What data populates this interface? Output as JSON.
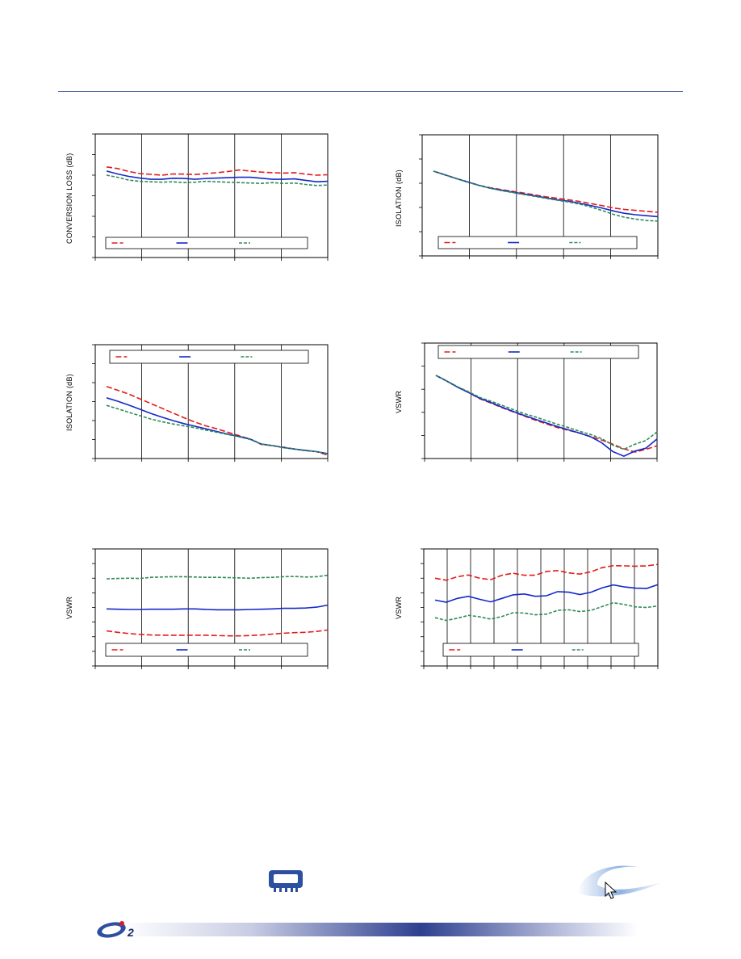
{
  "colors": {
    "red": "#e31b1b",
    "blue": "#1428c8",
    "green": "#2e8b57",
    "rule": "#3a4f99"
  },
  "icons": {
    "logo": "company-logo",
    "chip": "chip-package-icon",
    "swoosh": "swoosh-cursor-graphic"
  },
  "charts": [
    {
      "id": "conv-loss",
      "ylabel": "CONVERSION LOSS (dB)",
      "chart_data": {
        "type": "line",
        "x": [
          0,
          1,
          2,
          3,
          4,
          5,
          6,
          7,
          8,
          9,
          10,
          11,
          12,
          13,
          14,
          15,
          16,
          17,
          18,
          19,
          20
        ],
        "xlim": [
          0,
          20
        ],
        "ylim": [
          0,
          6
        ],
        "xdiv": 5,
        "ydiv": 6,
        "series": [
          {
            "color": "red",
            "dash": "7,3",
            "values": [
              4.4,
              4.32,
              4.18,
              4.08,
              4.04,
              4.0,
              4.06,
              4.05,
              4.03,
              4.08,
              4.12,
              4.18,
              4.25,
              4.2,
              4.15,
              4.12,
              4.1,
              4.12,
              4.05,
              4.0,
              4.02
            ]
          },
          {
            "color": "blue",
            "dash": "",
            "values": [
              4.2,
              4.06,
              3.94,
              3.86,
              3.8,
              3.8,
              3.85,
              3.84,
              3.8,
              3.84,
              3.86,
              3.88,
              3.9,
              3.9,
              3.85,
              3.8,
              3.8,
              3.82,
              3.75,
              3.68,
              3.7
            ]
          },
          {
            "color": "green",
            "dash": "4,2",
            "values": [
              4.0,
              3.9,
              3.76,
              3.7,
              3.68,
              3.66,
              3.68,
              3.64,
              3.66,
              3.7,
              3.68,
              3.66,
              3.64,
              3.62,
              3.6,
              3.64,
              3.6,
              3.62,
              3.55,
              3.5,
              3.52
            ]
          }
        ]
      }
    },
    {
      "id": "isolation-1",
      "ylabel": "ISOLATION (dB)",
      "chart_data": {
        "type": "line",
        "x": [
          0,
          1,
          2,
          3,
          4,
          5,
          6,
          7,
          8,
          9,
          10,
          11,
          12,
          13,
          14,
          15,
          16,
          17,
          18,
          19,
          20
        ],
        "xlim": [
          0,
          20
        ],
        "ylim": [
          0,
          5
        ],
        "xdiv": 5,
        "ydiv": 5,
        "series": [
          {
            "color": "red",
            "dash": "7,3",
            "values": [
              3.5,
              3.35,
              3.2,
              3.06,
              2.92,
              2.82,
              2.74,
              2.67,
              2.6,
              2.52,
              2.44,
              2.38,
              2.32,
              2.25,
              2.16,
              2.08,
              1.98,
              1.92,
              1.88,
              1.84,
              1.8
            ]
          },
          {
            "color": "blue",
            "dash": "",
            "values": [
              3.5,
              3.35,
              3.2,
              3.06,
              2.92,
              2.8,
              2.72,
              2.64,
              2.56,
              2.48,
              2.4,
              2.32,
              2.26,
              2.18,
              2.08,
              1.98,
              1.86,
              1.76,
              1.7,
              1.66,
              1.62
            ]
          },
          {
            "color": "green",
            "dash": "4,2",
            "values": [
              3.5,
              3.36,
              3.2,
              3.05,
              2.92,
              2.8,
              2.7,
              2.62,
              2.54,
              2.46,
              2.38,
              2.3,
              2.23,
              2.14,
              2.02,
              1.88,
              1.72,
              1.6,
              1.52,
              1.46,
              1.44
            ]
          }
        ]
      }
    },
    {
      "id": "isolation-2",
      "ylabel": "ISOLATION (dB)",
      "chart_data": {
        "type": "line",
        "x": [
          0,
          1,
          2,
          3,
          4,
          5,
          6,
          7,
          8,
          9,
          10,
          11,
          12,
          13,
          14,
          15,
          16,
          17,
          18,
          19,
          20
        ],
        "xlim": [
          0,
          20
        ],
        "ylim": [
          0,
          6
        ],
        "xdiv": 5,
        "ydiv": 6,
        "series": [
          {
            "color": "red",
            "dash": "7,3",
            "values": [
              3.8,
              3.6,
              3.4,
              3.15,
              2.9,
              2.65,
              2.4,
              2.15,
              1.92,
              1.72,
              1.56,
              1.38,
              1.2,
              1.02,
              0.74,
              0.68,
              0.6,
              0.5,
              0.42,
              0.36,
              0.18
            ]
          },
          {
            "color": "blue",
            "dash": "",
            "values": [
              3.2,
              3.02,
              2.82,
              2.6,
              2.38,
              2.18,
              2.0,
              1.84,
              1.7,
              1.56,
              1.42,
              1.28,
              1.16,
              1.02,
              0.76,
              0.68,
              0.58,
              0.5,
              0.42,
              0.36,
              0.26
            ]
          },
          {
            "color": "green",
            "dash": "4,2",
            "values": [
              2.8,
              2.62,
              2.44,
              2.26,
              2.08,
              1.94,
              1.82,
              1.72,
              1.62,
              1.5,
              1.38,
              1.26,
              1.14,
              1.0,
              0.76,
              0.68,
              0.58,
              0.5,
              0.44,
              0.36,
              0.24
            ]
          }
        ]
      }
    },
    {
      "id": "vswr-1",
      "ylabel": "VSWR",
      "chart_data": {
        "type": "line",
        "x": [
          0,
          1,
          2,
          3,
          4,
          5,
          6,
          7,
          8,
          9,
          10,
          11,
          12,
          13,
          14,
          15,
          16,
          17,
          18,
          19,
          20
        ],
        "xlim": [
          0,
          20
        ],
        "ylim": [
          0,
          5
        ],
        "xdiv": 5,
        "ydiv": 5,
        "series": [
          {
            "color": "red",
            "dash": "7,3",
            "values": [
              3.6,
              3.35,
              3.08,
              2.85,
              2.58,
              2.4,
              2.2,
              2.02,
              1.84,
              1.66,
              1.5,
              1.34,
              1.22,
              1.1,
              0.95,
              0.8,
              0.62,
              0.42,
              0.28,
              0.4,
              0.55
            ]
          },
          {
            "color": "blue",
            "dash": "",
            "values": [
              3.6,
              3.35,
              3.08,
              2.85,
              2.6,
              2.42,
              2.22,
              2.04,
              1.86,
              1.7,
              1.54,
              1.38,
              1.24,
              1.1,
              0.94,
              0.68,
              0.3,
              0.1,
              0.32,
              0.45,
              0.85
            ]
          },
          {
            "color": "green",
            "dash": "4,2",
            "values": [
              3.6,
              3.36,
              3.1,
              2.88,
              2.64,
              2.48,
              2.3,
              2.12,
              1.94,
              1.8,
              1.64,
              1.48,
              1.34,
              1.18,
              1.04,
              0.86,
              0.58,
              0.4,
              0.62,
              0.78,
              1.15
            ]
          }
        ]
      }
    },
    {
      "id": "vswr-2",
      "ylabel": "VSWR",
      "chart_data": {
        "type": "line",
        "x": [
          0,
          1,
          2,
          3,
          4,
          5,
          6,
          7,
          8,
          9,
          10,
          11,
          12,
          13,
          14,
          15,
          16,
          17,
          18,
          19,
          20
        ],
        "xlim": [
          0,
          20
        ],
        "ylim": [
          0,
          8
        ],
        "xdiv": 5,
        "ydiv": 8,
        "series": [
          {
            "color": "red",
            "dash": "7,3",
            "values": [
              2.4,
              2.3,
              2.22,
              2.16,
              2.12,
              2.1,
              2.1,
              2.1,
              2.1,
              2.1,
              2.08,
              2.06,
              2.06,
              2.08,
              2.12,
              2.18,
              2.24,
              2.28,
              2.3,
              2.36,
              2.46
            ]
          },
          {
            "color": "blue",
            "dash": "",
            "values": [
              3.9,
              3.88,
              3.86,
              3.86,
              3.88,
              3.88,
              3.88,
              3.9,
              3.9,
              3.86,
              3.84,
              3.84,
              3.84,
              3.86,
              3.88,
              3.9,
              3.94,
              3.94,
              3.96,
              4.02,
              4.16
            ]
          },
          {
            "color": "green",
            "dash": "4,2",
            "values": [
              5.96,
              5.98,
              6.0,
              5.98,
              6.06,
              6.08,
              6.1,
              6.1,
              6.08,
              6.06,
              6.06,
              6.04,
              6.02,
              6.0,
              6.04,
              6.06,
              6.1,
              6.12,
              6.08,
              6.1,
              6.2
            ]
          }
        ]
      }
    },
    {
      "id": "vswr-3",
      "ylabel": "VSWR",
      "chart_data": {
        "type": "line",
        "x": [
          0,
          1,
          2,
          3,
          4,
          5,
          6,
          7,
          8,
          9,
          10,
          11,
          12,
          13,
          14,
          15,
          16,
          17,
          18,
          19,
          20
        ],
        "xlim": [
          0,
          20
        ],
        "ylim": [
          0,
          8
        ],
        "xdiv": 10,
        "ydiv": 8,
        "series": [
          {
            "color": "red",
            "dash": "7,3",
            "values": [
              6.0,
              5.86,
              6.1,
              6.22,
              6.0,
              5.9,
              6.2,
              6.34,
              6.2,
              6.2,
              6.46,
              6.52,
              6.36,
              6.28,
              6.44,
              6.72,
              6.86,
              6.84,
              6.82,
              6.84,
              6.94
            ]
          },
          {
            "color": "blue",
            "dash": "",
            "values": [
              4.5,
              4.36,
              4.62,
              4.76,
              4.56,
              4.38,
              4.62,
              4.86,
              4.92,
              4.76,
              4.8,
              5.08,
              5.04,
              4.88,
              5.04,
              5.34,
              5.54,
              5.4,
              5.32,
              5.3,
              5.56
            ]
          },
          {
            "color": "green",
            "dash": "4,2",
            "values": [
              3.3,
              3.12,
              3.26,
              3.46,
              3.36,
              3.2,
              3.38,
              3.64,
              3.62,
              3.5,
              3.54,
              3.8,
              3.84,
              3.72,
              3.8,
              4.06,
              4.32,
              4.2,
              4.04,
              4.0,
              4.1
            ]
          }
        ]
      }
    }
  ]
}
